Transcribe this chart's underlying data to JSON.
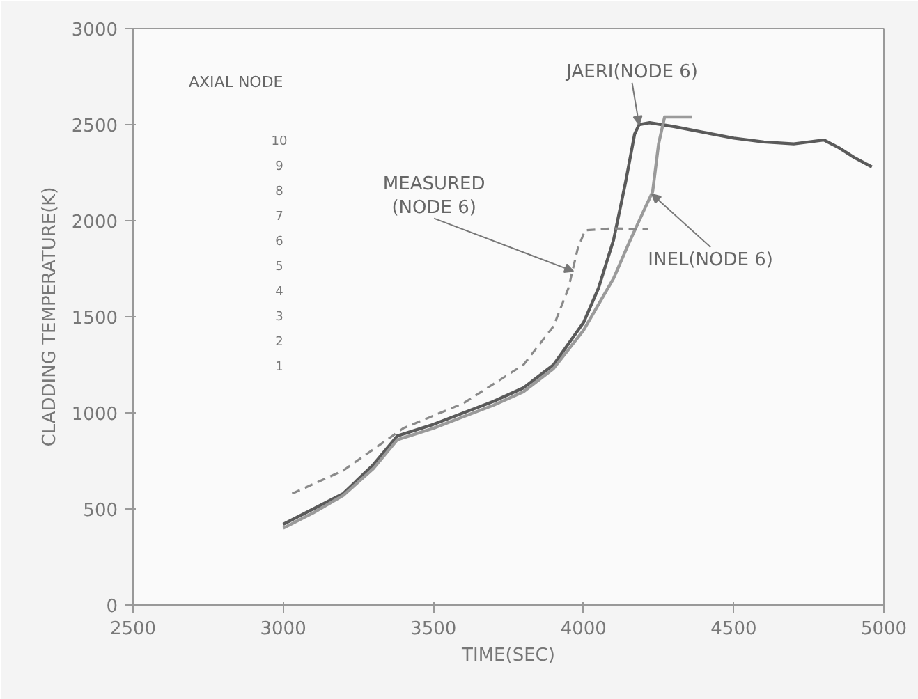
{
  "chart_data": {
    "type": "line",
    "xlabel": "TIME(SEC)",
    "ylabel": "CLADDING TEMPERATURE(K)",
    "xlim": [
      2500,
      5000
    ],
    "xticks": [
      2500,
      3000,
      3500,
      4000,
      4500,
      5000
    ],
    "ylim": [
      0,
      3000
    ],
    "yticks": [
      0,
      500,
      1000,
      1500,
      2000,
      2500,
      3000
    ],
    "grid": false,
    "series": [
      {
        "color": "#5a5a5a",
        "line_style": "solid",
        "x": [
          3000,
          3100,
          3200,
          3300,
          3380,
          3500,
          3600,
          3700,
          3800,
          3900,
          4000,
          4050,
          4100,
          4140,
          4170,
          4185,
          4220,
          4300,
          4400,
          4500,
          4600,
          4700,
          4800,
          4850,
          4900,
          4960
        ],
        "values": [
          420,
          500,
          580,
          730,
          880,
          940,
          1000,
          1060,
          1130,
          1250,
          1470,
          1650,
          1900,
          2200,
          2450,
          2500,
          2510,
          2490,
          2460,
          2430,
          2410,
          2400,
          2420,
          2380,
          2330,
          2280
        ]
      },
      {
        "color": "#9a9a9a",
        "line_style": "solid",
        "x": [
          3000,
          3100,
          3200,
          3300,
          3380,
          3500,
          3600,
          3700,
          3800,
          3900,
          4000,
          4100,
          4150,
          4200,
          4230,
          4250,
          4270,
          4360
        ],
        "values": [
          400,
          480,
          570,
          710,
          860,
          920,
          980,
          1040,
          1110,
          1230,
          1430,
          1700,
          1880,
          2050,
          2150,
          2400,
          2540,
          2540
        ]
      },
      {
        "color": "#8a8a8a",
        "line_style": "dashed",
        "x": [
          3030,
          3200,
          3400,
          3600,
          3800,
          3900,
          3950,
          3980,
          4005,
          4100,
          4214
        ],
        "values": [
          580,
          700,
          920,
          1050,
          1250,
          1450,
          1650,
          1850,
          1950,
          1960,
          1956
        ]
      }
    ],
    "annotations": [
      {
        "text": "JAERI(NODE 6)",
        "x": 4185,
        "y": 2500
      },
      {
        "text": "MEASURED\n(NODE 6)",
        "x": 3966,
        "y": 1737
      },
      {
        "text": "INEL(NODE 6)",
        "x": 4228,
        "y": 2138
      },
      "AXIAL NODE",
      "10",
      "9",
      "8",
      "7",
      "6",
      "5",
      "4",
      "3",
      "2",
      "1"
    ]
  }
}
